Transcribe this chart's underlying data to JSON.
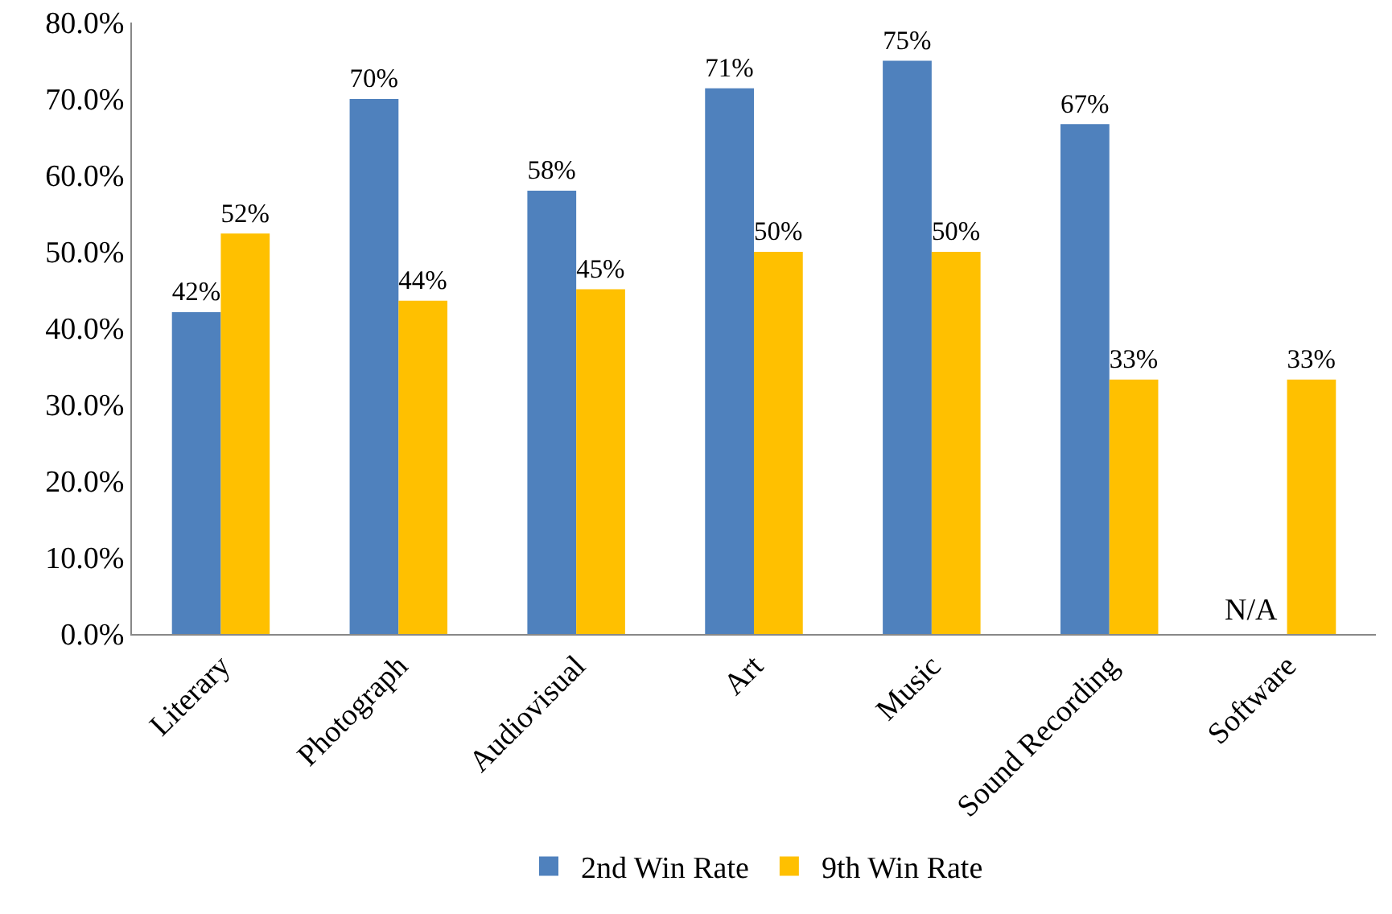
{
  "chart_data": {
    "type": "bar",
    "categories": [
      "Literary",
      "Photograph",
      "Audiovisual",
      "Art",
      "Music",
      "Sound Recording",
      "Software"
    ],
    "series": [
      {
        "name": "2nd Win Rate",
        "color": "#4f81bd",
        "values": [
          42.1,
          70.0,
          58.0,
          71.4,
          75.0,
          66.7,
          null
        ],
        "value_labels": [
          "42%",
          "70%",
          "58%",
          "71%",
          "75%",
          "67%",
          "N/A"
        ]
      },
      {
        "name": "9th Win Rate",
        "color": "#ffc000",
        "values": [
          52.4,
          43.6,
          45.1,
          50.0,
          50.0,
          33.3,
          33.3
        ],
        "value_labels": [
          "52%",
          "44%",
          "45%",
          "50%",
          "50%",
          "33%",
          "33%"
        ]
      }
    ],
    "ylim": [
      0,
      80
    ],
    "yticks": [
      {
        "value": 0,
        "label": "0.0%"
      },
      {
        "value": 10,
        "label": "10.0%"
      },
      {
        "value": 20,
        "label": "20.0%"
      },
      {
        "value": 30,
        "label": "30.0%"
      },
      {
        "value": 40,
        "label": "40.0%"
      },
      {
        "value": 50,
        "label": "50.0%"
      },
      {
        "value": 60,
        "label": "60.0%"
      },
      {
        "value": 70,
        "label": "70.0%"
      },
      {
        "value": 80,
        "label": "80.0%"
      }
    ],
    "grid": false,
    "legend": "bottom"
  }
}
